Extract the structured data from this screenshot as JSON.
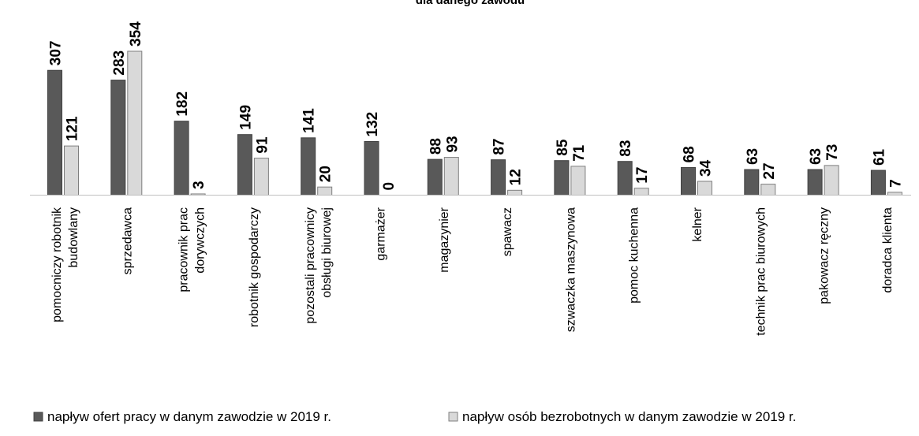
{
  "chart_data": {
    "type": "bar",
    "title": "dla danego zawodu",
    "categories": [
      [
        "pomocniczy robotnik",
        "budowlany"
      ],
      [
        "sprzedawca"
      ],
      [
        "pracownik prac",
        "dorywczych"
      ],
      [
        "robotnik gospodarczy"
      ],
      [
        "pozostali pracownicy",
        "obsługi biurowej"
      ],
      [
        "garmażer"
      ],
      [
        "magazynier"
      ],
      [
        "spawacz"
      ],
      [
        "szwaczka maszynowa"
      ],
      [
        "pomoc kuchenna"
      ],
      [
        "kelner"
      ],
      [
        "technik prac biurowych"
      ],
      [
        "pakowacz ręczny"
      ],
      [
        "doradca klienta"
      ]
    ],
    "series": [
      {
        "name": "napływ ofert pracy w danym zawodzie w 2019 r.",
        "color": "#595959",
        "values": [
          307,
          283,
          182,
          149,
          141,
          132,
          88,
          87,
          85,
          83,
          68,
          63,
          63,
          61
        ]
      },
      {
        "name": "napływ osób bezrobotnych w danym zawodzie w 2019 r.",
        "color": "#d9d9d9",
        "values": [
          121,
          354,
          3,
          91,
          20,
          0,
          93,
          12,
          71,
          17,
          34,
          27,
          73,
          7
        ]
      }
    ],
    "ylim": [
      0,
      354
    ],
    "grid": false,
    "data_labels": true,
    "legend_position": "bottom"
  }
}
